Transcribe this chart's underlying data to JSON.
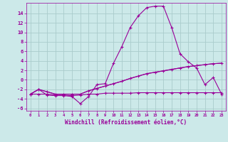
{
  "xlabel": "Windchill (Refroidissement éolien,°C)",
  "background_color": "#cce9e9",
  "line_color": "#990099",
  "grid_color": "#aacccc",
  "x_values": [
    0,
    1,
    2,
    3,
    4,
    5,
    6,
    7,
    8,
    9,
    10,
    11,
    12,
    13,
    14,
    15,
    16,
    17,
    18,
    19,
    20,
    21,
    22,
    23
  ],
  "series1": [
    -3.0,
    -2.0,
    -3.2,
    -3.3,
    -3.3,
    -3.5,
    -5.0,
    -3.5,
    -1.0,
    -0.8,
    3.5,
    7.0,
    11.0,
    13.5,
    15.2,
    15.5,
    15.5,
    11.0,
    5.5,
    3.8,
    2.5,
    -1.0,
    0.5,
    -3.0
  ],
  "series2": [
    -3.0,
    -2.0,
    -2.5,
    -3.0,
    -3.0,
    -3.0,
    -3.0,
    -2.3,
    -1.8,
    -1.3,
    -0.8,
    -0.3,
    0.3,
    0.8,
    1.3,
    1.6,
    1.9,
    2.2,
    2.5,
    2.8,
    3.0,
    3.2,
    3.4,
    3.5
  ],
  "series3": [
    -3.0,
    -2.0,
    -2.5,
    -3.0,
    -3.0,
    -3.0,
    -3.0,
    -2.3,
    -1.8,
    -1.3,
    -0.8,
    -0.3,
    0.3,
    0.8,
    1.3,
    1.6,
    1.9,
    2.2,
    2.5,
    2.8,
    3.0,
    3.2,
    3.4,
    3.5
  ],
  "series4": [
    -3.0,
    -3.0,
    -3.0,
    -3.2,
    -3.2,
    -3.3,
    -3.2,
    -3.0,
    -3.0,
    -2.8,
    -2.8,
    -2.8,
    -2.8,
    -2.7,
    -2.7,
    -2.7,
    -2.7,
    -2.7,
    -2.7,
    -2.7,
    -2.7,
    -2.7,
    -2.7,
    -2.7
  ],
  "xlim": [
    -0.5,
    23.5
  ],
  "ylim": [
    -6.5,
    16.2
  ],
  "yticks": [
    -6,
    -4,
    -2,
    0,
    2,
    4,
    6,
    8,
    10,
    12,
    14
  ],
  "xticks": [
    0,
    1,
    2,
    3,
    4,
    5,
    6,
    7,
    8,
    9,
    10,
    11,
    12,
    13,
    14,
    15,
    16,
    17,
    18,
    19,
    20,
    21,
    22,
    23
  ],
  "marker": "+",
  "marker_size": 3,
  "linewidth": 0.8
}
